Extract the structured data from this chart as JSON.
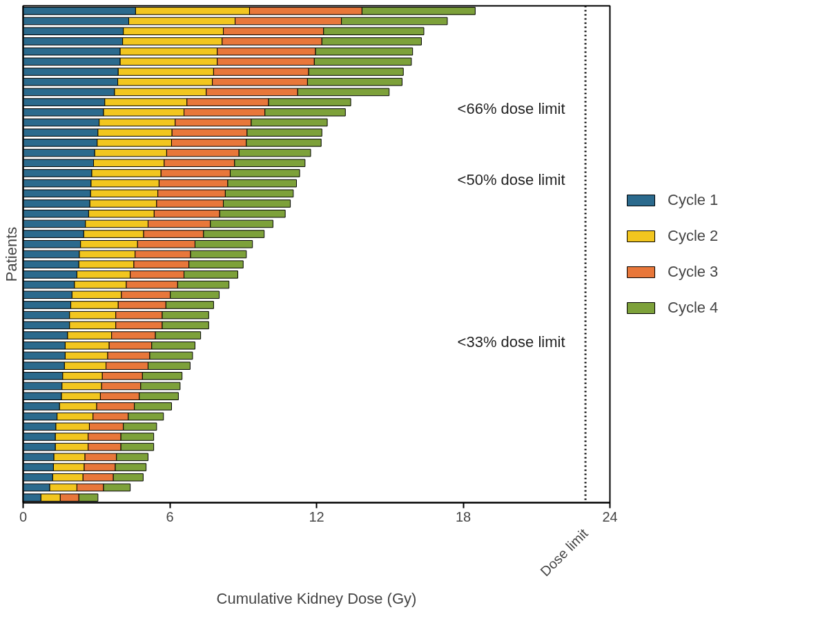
{
  "chart_data": {
    "type": "bar",
    "orientation": "horizontal",
    "stacked": true,
    "xlabel": "Cumulative Kidney Dose (Gy)",
    "ylabel": "Patients",
    "categories": [
      null,
      null,
      null,
      null,
      null,
      null,
      null,
      null,
      null,
      null,
      null,
      null,
      null,
      null,
      null,
      null,
      null,
      null,
      null,
      null,
      null,
      null,
      null,
      null,
      null,
      null,
      null,
      null,
      null,
      null,
      null,
      null,
      null,
      null,
      null,
      null,
      null,
      null,
      null,
      null,
      null,
      null,
      null,
      null,
      null,
      null,
      null,
      null,
      null
    ],
    "series": [
      {
        "name": "Cycle 1",
        "color": "#2b6a8d",
        "values": [
          4.6,
          4.32,
          4.1,
          4.07,
          3.97,
          3.97,
          3.89,
          3.87,
          3.74,
          3.34,
          3.29,
          3.11,
          3.06,
          3.03,
          2.93,
          2.88,
          2.81,
          2.78,
          2.76,
          2.73,
          2.68,
          2.55,
          2.48,
          2.35,
          2.3,
          2.28,
          2.2,
          2.1,
          2.0,
          1.95,
          1.9,
          1.9,
          1.82,
          1.72,
          1.72,
          1.69,
          1.62,
          1.59,
          1.57,
          1.49,
          1.39,
          1.34,
          1.32,
          1.32,
          1.26,
          1.24,
          1.21,
          1.09,
          0.73
        ]
      },
      {
        "name": "Cycle 2",
        "color": "#f2c61f",
        "values": [
          4.66,
          4.35,
          4.09,
          4.07,
          3.97,
          3.97,
          3.9,
          3.87,
          3.75,
          3.36,
          3.29,
          3.11,
          3.03,
          3.04,
          2.94,
          2.89,
          2.83,
          2.78,
          2.75,
          2.73,
          2.68,
          2.56,
          2.45,
          2.33,
          2.28,
          2.25,
          2.18,
          2.12,
          2.02,
          1.94,
          1.89,
          1.89,
          1.8,
          1.8,
          1.74,
          1.7,
          1.62,
          1.62,
          1.59,
          1.52,
          1.47,
          1.37,
          1.34,
          1.34,
          1.27,
          1.26,
          1.24,
          1.11,
          0.79
        ]
      },
      {
        "name": "Cycle 3",
        "color": "#e8773a",
        "values": [
          4.6,
          4.35,
          4.1,
          4.08,
          4.02,
          3.97,
          3.89,
          3.89,
          3.74,
          3.34,
          3.31,
          3.11,
          3.07,
          3.06,
          2.96,
          2.88,
          2.83,
          2.81,
          2.76,
          2.73,
          2.68,
          2.55,
          2.45,
          2.35,
          2.27,
          2.25,
          2.2,
          2.1,
          2.0,
          1.95,
          1.9,
          1.9,
          1.79,
          1.74,
          1.72,
          1.72,
          1.64,
          1.6,
          1.59,
          1.54,
          1.44,
          1.39,
          1.34,
          1.34,
          1.29,
          1.27,
          1.24,
          1.09,
          0.76
        ]
      },
      {
        "name": "Cycle 4",
        "color": "#7da13a",
        "values": [
          4.63,
          4.33,
          4.1,
          4.07,
          3.97,
          3.97,
          3.87,
          3.87,
          3.74,
          3.36,
          3.29,
          3.11,
          3.06,
          3.06,
          2.93,
          2.88,
          2.84,
          2.81,
          2.78,
          2.74,
          2.68,
          2.56,
          2.48,
          2.35,
          2.28,
          2.22,
          2.2,
          2.1,
          2.0,
          1.95,
          1.9,
          1.9,
          1.85,
          1.77,
          1.75,
          1.72,
          1.62,
          1.61,
          1.6,
          1.52,
          1.44,
          1.36,
          1.34,
          1.34,
          1.29,
          1.26,
          1.22,
          1.09,
          0.78
        ]
      }
    ],
    "xlim": [
      0,
      24
    ],
    "xticks": [
      0,
      6,
      12,
      18,
      24
    ],
    "ref_lines": [
      {
        "axis": "x",
        "value": 23,
        "label": "Dose limit",
        "color": "#000000",
        "line_style": "dotted"
      }
    ],
    "annotations": [
      "<66% dose limit",
      "<50% dose limit",
      "<33% dose limit"
    ],
    "grid": false,
    "legend": "right",
    "tick_labels": "x"
  }
}
